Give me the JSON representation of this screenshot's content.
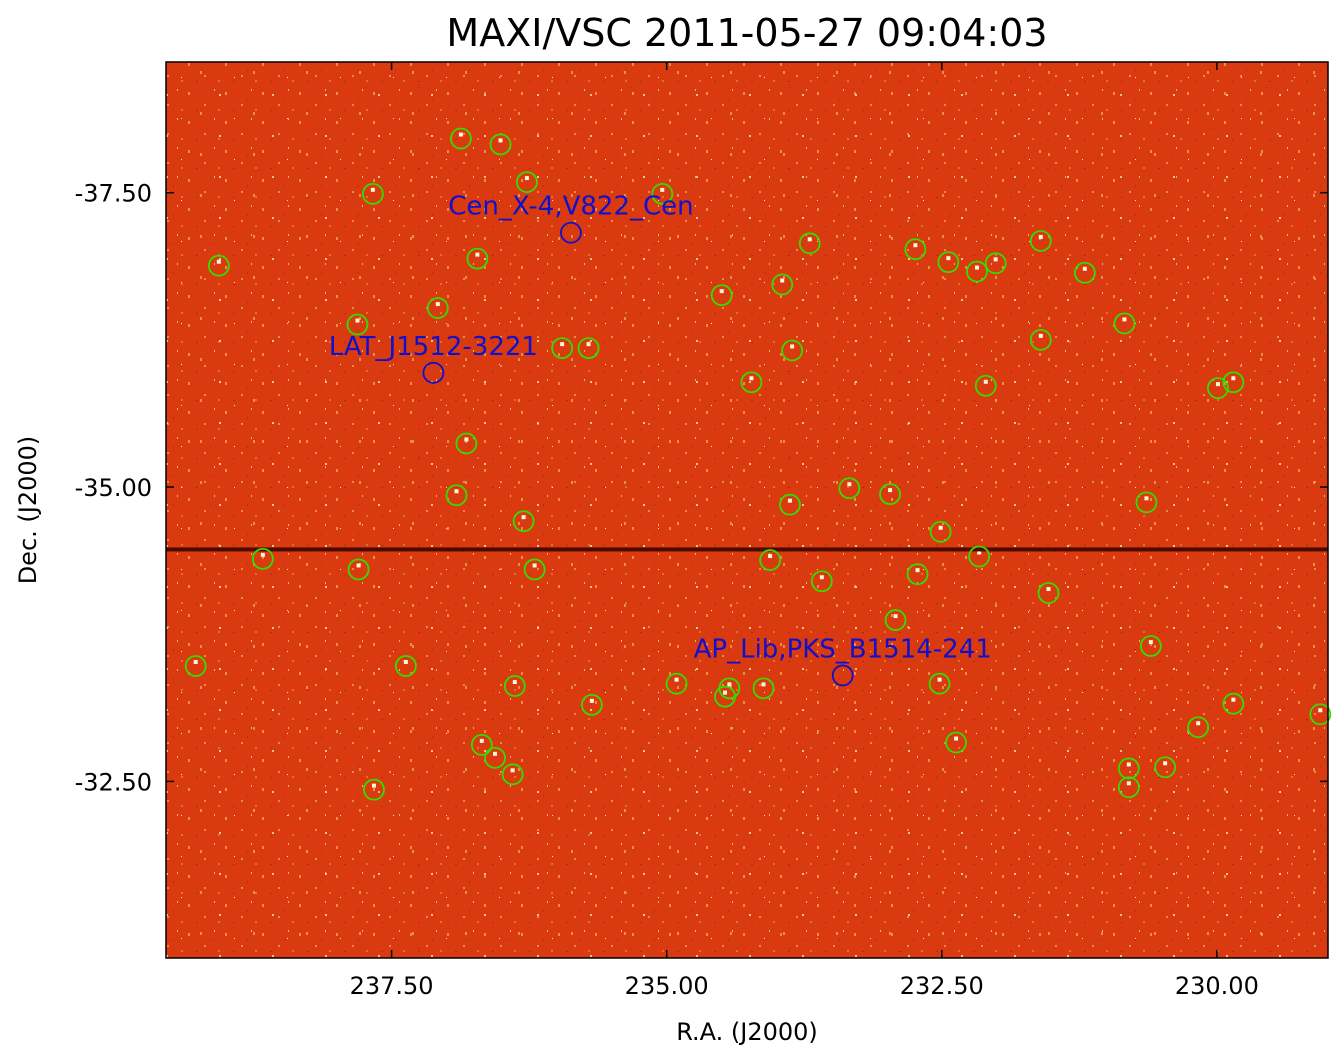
{
  "chart_data": {
    "type": "scatter",
    "title": "MAXI/VSC 2011-05-27 09:04:03",
    "xlabel": "R.A. (J2000)",
    "ylabel": "Dec. (J2000)",
    "x_ticks": [
      "237.50",
      "235.00",
      "232.50",
      "230.00"
    ],
    "y_ticks": [
      "-37.50",
      "-35.00",
      "-32.50"
    ],
    "x_tick_values": [
      237.5,
      235.0,
      232.5,
      230.0
    ],
    "y_tick_values": [
      -37.5,
      -35.0,
      -32.5
    ],
    "xlim": [
      239.55,
      228.99
    ],
    "ylim": [
      -38.61,
      -31.0
    ],
    "background_color": "#d93a10",
    "background_speckle_color": "#f08a40",
    "dark_band_dec": -34.47,
    "dark_band_color": "#4a0a00",
    "detected_marker_color": "#33dd00",
    "catalog_marker_color": "#1010cc",
    "catalog_sources": [
      {
        "name": "Cen_X-4,V822_Cen",
        "ra": 235.87,
        "dec": -37.16
      },
      {
        "name": "LAT_J1512-3221",
        "ra": 237.12,
        "dec": -35.97
      },
      {
        "name": "AP_Lib,PKS_B1514-241",
        "ra": 233.4,
        "dec": -33.4
      }
    ],
    "detected_sources": [
      {
        "ra": 236.87,
        "dec": -37.96
      },
      {
        "ra": 236.51,
        "dec": -37.91
      },
      {
        "ra": 236.27,
        "dec": -37.59
      },
      {
        "ra": 237.67,
        "dec": -37.49
      },
      {
        "ra": 235.04,
        "dec": -37.49
      },
      {
        "ra": 239.07,
        "dec": -36.88
      },
      {
        "ra": 236.72,
        "dec": -36.94
      },
      {
        "ra": 233.7,
        "dec": -37.07
      },
      {
        "ra": 232.74,
        "dec": -37.02
      },
      {
        "ra": 232.44,
        "dec": -36.91
      },
      {
        "ra": 232.18,
        "dec": -36.83
      },
      {
        "ra": 232.01,
        "dec": -36.9
      },
      {
        "ra": 231.6,
        "dec": -37.09
      },
      {
        "ra": 231.2,
        "dec": -36.82
      },
      {
        "ra": 237.08,
        "dec": -36.52
      },
      {
        "ra": 234.5,
        "dec": -36.63
      },
      {
        "ra": 233.95,
        "dec": -36.72
      },
      {
        "ra": 237.81,
        "dec": -36.38
      },
      {
        "ra": 235.95,
        "dec": -36.18
      },
      {
        "ra": 235.71,
        "dec": -36.18
      },
      {
        "ra": 233.86,
        "dec": -36.16
      },
      {
        "ra": 231.6,
        "dec": -36.25
      },
      {
        "ra": 230.84,
        "dec": -36.39
      },
      {
        "ra": 234.23,
        "dec": -35.89
      },
      {
        "ra": 232.1,
        "dec": -35.86
      },
      {
        "ra": 229.85,
        "dec": -35.89
      },
      {
        "ra": 229.99,
        "dec": -35.84
      },
      {
        "ra": 236.82,
        "dec": -35.37
      },
      {
        "ra": 236.91,
        "dec": -34.93
      },
      {
        "ra": 236.3,
        "dec": -34.71
      },
      {
        "ra": 233.34,
        "dec": -34.99
      },
      {
        "ra": 232.97,
        "dec": -34.94
      },
      {
        "ra": 230.64,
        "dec": -34.87
      },
      {
        "ra": 233.88,
        "dec": -34.85
      },
      {
        "ra": 232.51,
        "dec": -34.62
      },
      {
        "ra": 238.67,
        "dec": -34.39
      },
      {
        "ra": 237.8,
        "dec": -34.3
      },
      {
        "ra": 236.2,
        "dec": -34.3
      },
      {
        "ra": 234.06,
        "dec": -34.38
      },
      {
        "ra": 232.16,
        "dec": -34.41
      },
      {
        "ra": 233.59,
        "dec": -34.2
      },
      {
        "ra": 232.72,
        "dec": -34.26
      },
      {
        "ra": 231.53,
        "dec": -34.1
      },
      {
        "ra": 232.92,
        "dec": -33.87
      },
      {
        "ra": 236.38,
        "dec": -33.31
      },
      {
        "ra": 234.91,
        "dec": -33.33
      },
      {
        "ra": 234.43,
        "dec": -33.29
      },
      {
        "ra": 229.06,
        "dec": -33.07
      },
      {
        "ra": 232.37,
        "dec": -32.83
      },
      {
        "ra": 237.66,
        "dec": -32.43
      },
      {
        "ra": 236.4,
        "dec": -32.56
      },
      {
        "ra": 230.8,
        "dec": -32.45
      },
      {
        "ra": 230.8,
        "dec": -32.61
      },
      {
        "ra": 230.47,
        "dec": -32.62
      },
      {
        "ra": 236.56,
        "dec": -32.7
      },
      {
        "ra": 236.68,
        "dec": -32.81
      },
      {
        "ra": 230.17,
        "dec": -32.96
      },
      {
        "ra": 235.68,
        "dec": -33.15
      },
      {
        "ra": 229.85,
        "dec": -33.16
      },
      {
        "ra": 234.47,
        "dec": -33.22
      },
      {
        "ra": 234.12,
        "dec": -33.29
      },
      {
        "ra": 232.52,
        "dec": -33.33
      },
      {
        "ra": 239.28,
        "dec": -33.48
      },
      {
        "ra": 237.37,
        "dec": -33.48
      },
      {
        "ra": 230.6,
        "dec": -33.65
      }
    ]
  }
}
